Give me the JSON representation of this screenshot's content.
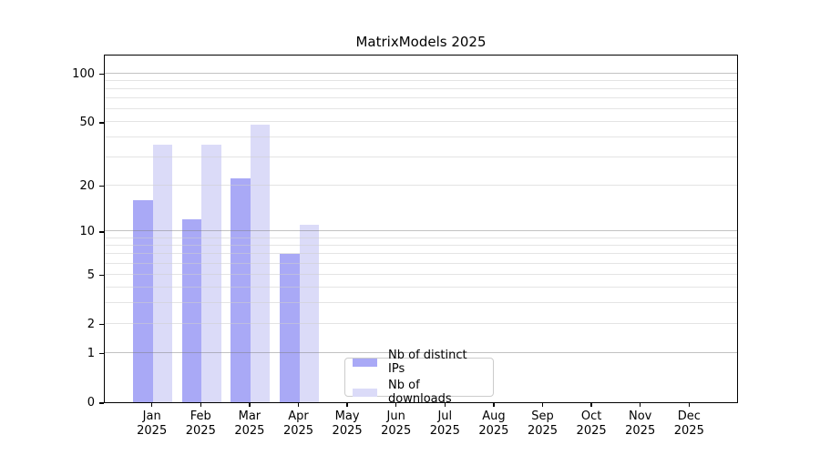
{
  "chart_data": {
    "type": "bar",
    "title": "MatrixModels 2025",
    "yscale": "log1p",
    "ylim": [
      0,
      127
    ],
    "yticks": [
      0,
      1,
      2,
      5,
      10,
      20,
      50,
      100
    ],
    "major_gridlines": [
      1,
      10,
      100
    ],
    "minor_gridlines": [
      2,
      3,
      4,
      5,
      6,
      7,
      8,
      9,
      20,
      30,
      40,
      50,
      60,
      70,
      80,
      90
    ],
    "grid": true,
    "categories": [
      {
        "month": "Jan",
        "year": "2025"
      },
      {
        "month": "Feb",
        "year": "2025"
      },
      {
        "month": "Mar",
        "year": "2025"
      },
      {
        "month": "Apr",
        "year": "2025"
      },
      {
        "month": "May",
        "year": "2025"
      },
      {
        "month": "Jun",
        "year": "2025"
      },
      {
        "month": "Jul",
        "year": "2025"
      },
      {
        "month": "Aug",
        "year": "2025"
      },
      {
        "month": "Sep",
        "year": "2025"
      },
      {
        "month": "Oct",
        "year": "2025"
      },
      {
        "month": "Nov",
        "year": "2025"
      },
      {
        "month": "Dec",
        "year": "2025"
      }
    ],
    "series": [
      {
        "name": "Nb of distinct IPs",
        "color": "#a9a9f6",
        "values": [
          16,
          12,
          22,
          7,
          0,
          0,
          0,
          0,
          0,
          0,
          0,
          0
        ]
      },
      {
        "name": "Nb of downloads",
        "color": "#dbdbf8",
        "values": [
          36,
          36,
          48,
          11,
          0,
          0,
          0,
          0,
          0,
          0,
          0,
          0
        ]
      }
    ],
    "legend_position": "lower center"
  }
}
